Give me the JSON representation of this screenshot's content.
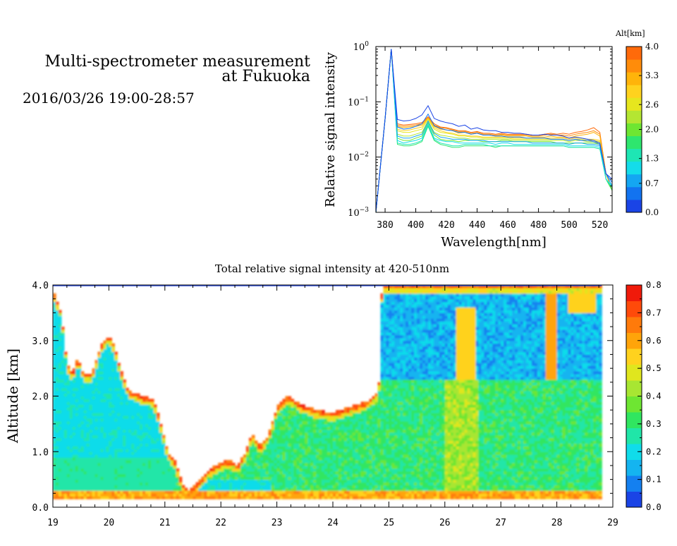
{
  "header": {
    "title_line1": "Multi-spectrometer measurement",
    "title_line2": "at Fukuoka",
    "date_range": "2016/03/26 19:00-28:57"
  },
  "colors": {
    "alt_scale": [
      "#1a44e6",
      "#1273f0",
      "#14a6f2",
      "#14dcea",
      "#1ee6b4",
      "#2ee66e",
      "#6ee632",
      "#b4e632",
      "#e6e61e",
      "#ffd21e",
      "#ffb40a",
      "#ff8c0a",
      "#ff6a0a"
    ],
    "intensity_scale": [
      "#1a44e6",
      "#1480f0",
      "#14b4f0",
      "#10dcea",
      "#20e6a8",
      "#30e660",
      "#6ee632",
      "#a8e632",
      "#e0e61e",
      "#ffd21e",
      "#ffa40a",
      "#ff7a0a",
      "#ff4a0a",
      "#f01a0a"
    ]
  },
  "chart_data": [
    {
      "type": "line",
      "title": "",
      "xlabel": "Wavelength[nm]",
      "ylabel": "Relative signal intensity",
      "xlim": [
        374,
        528
      ],
      "ylim": [
        0.001,
        1
      ],
      "yscale": "log",
      "xticks": [
        "380",
        "400",
        "420",
        "440",
        "460",
        "480",
        "500",
        "520"
      ],
      "yticks": [
        {
          "base": "10",
          "exp": "0"
        },
        {
          "base": "10",
          "exp": "−1"
        },
        {
          "base": "10",
          "exp": "−2"
        },
        {
          "base": "10",
          "exp": "−3"
        }
      ],
      "x": [
        374,
        380,
        384,
        388,
        392,
        396,
        400,
        404,
        408,
        412,
        416,
        420,
        424,
        428,
        432,
        436,
        440,
        444,
        448,
        452,
        456,
        460,
        464,
        468,
        472,
        476,
        480,
        484,
        488,
        492,
        496,
        500,
        504,
        508,
        512,
        516,
        520,
        524,
        528
      ],
      "colorbar": {
        "title": "Alt[km]",
        "ticks": [
          "4.0",
          "3.3",
          "2.6",
          "2.0",
          "1.3",
          "0.7",
          "0.0"
        ],
        "range": [
          0,
          4
        ]
      },
      "series": [
        {
          "alt": 0.0,
          "values": [
            0.001,
            0.05,
            0.9,
            0.048,
            0.045,
            0.046,
            0.05,
            0.058,
            0.085,
            0.05,
            0.045,
            0.042,
            0.04,
            0.036,
            0.038,
            0.032,
            0.034,
            0.031,
            0.03,
            0.03,
            0.028,
            0.028,
            0.027,
            0.027,
            0.026,
            0.025,
            0.025,
            0.026,
            0.025,
            0.025,
            0.024,
            0.022,
            0.023,
            0.022,
            0.021,
            0.02,
            0.018,
            0.005,
            0.004
          ]
        },
        {
          "alt": 0.3,
          "values": [
            0.001,
            0.05,
            0.9,
            0.035,
            0.032,
            0.033,
            0.036,
            0.04,
            0.06,
            0.037,
            0.033,
            0.031,
            0.03,
            0.028,
            0.028,
            0.026,
            0.027,
            0.025,
            0.025,
            0.024,
            0.024,
            0.023,
            0.023,
            0.023,
            0.022,
            0.022,
            0.022,
            0.022,
            0.021,
            0.021,
            0.021,
            0.02,
            0.021,
            0.02,
            0.02,
            0.019,
            0.017,
            0.005,
            0.0035
          ]
        },
        {
          "alt": 0.7,
          "values": [
            0.001,
            0.05,
            0.9,
            0.024,
            0.022,
            0.022,
            0.024,
            0.026,
            0.045,
            0.027,
            0.023,
            0.022,
            0.021,
            0.021,
            0.021,
            0.02,
            0.02,
            0.02,
            0.019,
            0.019,
            0.019,
            0.019,
            0.019,
            0.019,
            0.019,
            0.018,
            0.018,
            0.018,
            0.018,
            0.018,
            0.018,
            0.017,
            0.018,
            0.018,
            0.017,
            0.017,
            0.016,
            0.005,
            0.003
          ]
        },
        {
          "alt": 1.0,
          "values": [
            0.001,
            0.05,
            0.9,
            0.02,
            0.018,
            0.019,
            0.02,
            0.022,
            0.04,
            0.022,
            0.02,
            0.019,
            0.019,
            0.018,
            0.018,
            0.018,
            0.018,
            0.018,
            0.018,
            0.017,
            0.018,
            0.018,
            0.017,
            0.017,
            0.017,
            0.017,
            0.017,
            0.017,
            0.017,
            0.017,
            0.017,
            0.016,
            0.016,
            0.016,
            0.016,
            0.016,
            0.015,
            0.004,
            0.003
          ]
        },
        {
          "alt": 1.3,
          "values": [
            0.001,
            0.05,
            0.9,
            0.018,
            0.017,
            0.017,
            0.018,
            0.02,
            0.038,
            0.021,
            0.018,
            0.017,
            0.016,
            0.016,
            0.017,
            0.017,
            0.017,
            0.017,
            0.016,
            0.016,
            0.016,
            0.016,
            0.016,
            0.016,
            0.016,
            0.016,
            0.016,
            0.016,
            0.016,
            0.016,
            0.016,
            0.015,
            0.015,
            0.015,
            0.015,
            0.015,
            0.014,
            0.004,
            0.0028
          ]
        },
        {
          "alt": 1.6,
          "values": [
            0.001,
            0.05,
            0.9,
            0.017,
            0.016,
            0.016,
            0.017,
            0.019,
            0.036,
            0.02,
            0.017,
            0.016,
            0.015,
            0.015,
            0.016,
            0.016,
            0.016,
            0.016,
            0.016,
            0.015,
            0.016,
            0.016,
            0.016,
            0.016,
            0.016,
            0.016,
            0.016,
            0.016,
            0.016,
            0.016,
            0.016,
            0.015,
            0.015,
            0.015,
            0.015,
            0.015,
            0.014,
            0.004,
            0.0025
          ]
        },
        {
          "alt": 2.0,
          "values": [
            0.001,
            0.05,
            0.9,
            0.022,
            0.02,
            0.02,
            0.022,
            0.024,
            0.042,
            0.025,
            0.021,
            0.02,
            0.02,
            0.019,
            0.02,
            0.02,
            0.02,
            0.019,
            0.019,
            0.019,
            0.02,
            0.02,
            0.019,
            0.019,
            0.019,
            0.019,
            0.019,
            0.019,
            0.019,
            0.018,
            0.018,
            0.018,
            0.018,
            0.018,
            0.018,
            0.018,
            0.017,
            0.004,
            0.0025
          ]
        },
        {
          "alt": 2.3,
          "values": [
            0.001,
            0.05,
            0.9,
            0.026,
            0.024,
            0.024,
            0.026,
            0.028,
            0.045,
            0.028,
            0.025,
            0.024,
            0.023,
            0.022,
            0.022,
            0.021,
            0.021,
            0.021,
            0.021,
            0.021,
            0.021,
            0.021,
            0.02,
            0.02,
            0.02,
            0.02,
            0.02,
            0.02,
            0.02,
            0.02,
            0.02,
            0.019,
            0.02,
            0.02,
            0.019,
            0.019,
            0.018,
            0.004,
            0.0025
          ]
        },
        {
          "alt": 2.6,
          "values": [
            0.001,
            0.05,
            0.9,
            0.03,
            0.028,
            0.028,
            0.03,
            0.032,
            0.048,
            0.032,
            0.028,
            0.027,
            0.026,
            0.024,
            0.024,
            0.023,
            0.023,
            0.022,
            0.022,
            0.022,
            0.022,
            0.022,
            0.021,
            0.021,
            0.021,
            0.021,
            0.021,
            0.021,
            0.021,
            0.021,
            0.021,
            0.02,
            0.021,
            0.021,
            0.02,
            0.02,
            0.019,
            0.004,
            0.0025
          ]
        },
        {
          "alt": 3.0,
          "values": [
            0.001,
            0.05,
            0.9,
            0.032,
            0.03,
            0.031,
            0.033,
            0.035,
            0.05,
            0.034,
            0.03,
            0.028,
            0.027,
            0.025,
            0.025,
            0.024,
            0.024,
            0.023,
            0.023,
            0.023,
            0.023,
            0.023,
            0.022,
            0.022,
            0.022,
            0.022,
            0.022,
            0.022,
            0.022,
            0.022,
            0.022,
            0.021,
            0.022,
            0.022,
            0.021,
            0.021,
            0.02,
            0.004,
            0.0025
          ]
        },
        {
          "alt": 3.3,
          "values": [
            0.001,
            0.05,
            0.9,
            0.036,
            0.034,
            0.035,
            0.036,
            0.038,
            0.05,
            0.036,
            0.032,
            0.031,
            0.03,
            0.027,
            0.028,
            0.026,
            0.027,
            0.025,
            0.025,
            0.024,
            0.025,
            0.024,
            0.024,
            0.024,
            0.024,
            0.023,
            0.023,
            0.023,
            0.024,
            0.023,
            0.023,
            0.022,
            0.024,
            0.025,
            0.026,
            0.028,
            0.024,
            0.005,
            0.0025
          ]
        },
        {
          "alt": 3.6,
          "values": [
            0.001,
            0.05,
            0.9,
            0.038,
            0.036,
            0.037,
            0.038,
            0.04,
            0.052,
            0.038,
            0.034,
            0.033,
            0.031,
            0.029,
            0.029,
            0.027,
            0.028,
            0.026,
            0.026,
            0.025,
            0.026,
            0.025,
            0.025,
            0.025,
            0.025,
            0.024,
            0.024,
            0.025,
            0.026,
            0.025,
            0.025,
            0.024,
            0.026,
            0.027,
            0.028,
            0.03,
            0.026,
            0.005,
            0.0025
          ]
        },
        {
          "alt": 4.0,
          "values": [
            0.001,
            0.05,
            0.9,
            0.04,
            0.038,
            0.039,
            0.04,
            0.042,
            0.054,
            0.04,
            0.035,
            0.034,
            0.032,
            0.03,
            0.03,
            0.028,
            0.029,
            0.027,
            0.027,
            0.026,
            0.027,
            0.026,
            0.026,
            0.026,
            0.026,
            0.025,
            0.025,
            0.026,
            0.027,
            0.026,
            0.027,
            0.026,
            0.028,
            0.029,
            0.031,
            0.034,
            0.028,
            0.005,
            0.0025
          ]
        }
      ]
    },
    {
      "type": "heatmap",
      "title": "Total relative signal intensity at 420-510nm",
      "xlabel": "",
      "ylabel": "Altitude [km]",
      "xlim": [
        19,
        29
      ],
      "ylim": [
        0,
        4
      ],
      "xticks": [
        "19",
        "20",
        "21",
        "22",
        "23",
        "24",
        "25",
        "26",
        "27",
        "28",
        "29"
      ],
      "yticks": [
        "4.0",
        "3.0",
        "2.0",
        "1.0",
        "0.0"
      ],
      "colorbar": {
        "ticks": [
          "0.8",
          "0.7",
          "0.6",
          "0.5",
          "0.4",
          "0.3",
          "0.2",
          "0.1",
          "0.0"
        ],
        "range": [
          0,
          0.8
        ]
      },
      "data_start": 19.0,
      "data_end": 28.8,
      "valid_min_altitude": 0.15,
      "cloud_base": [
        [
          19.0,
          3.9
        ],
        [
          19.15,
          3.5
        ],
        [
          19.25,
          2.6
        ],
        [
          19.35,
          2.4
        ],
        [
          19.45,
          2.7
        ],
        [
          19.55,
          2.4
        ],
        [
          19.7,
          2.4
        ],
        [
          19.85,
          2.9
        ],
        [
          20.0,
          3.1
        ],
        [
          20.1,
          2.9
        ],
        [
          20.2,
          2.5
        ],
        [
          20.35,
          2.1
        ],
        [
          20.6,
          2.0
        ],
        [
          20.8,
          1.95
        ],
        [
          20.9,
          1.6
        ],
        [
          21.05,
          1.0
        ],
        [
          21.2,
          0.8
        ],
        [
          21.3,
          0.45
        ],
        [
          21.45,
          0.3
        ],
        [
          21.6,
          0.45
        ],
        [
          21.8,
          0.7
        ],
        [
          22.0,
          0.8
        ],
        [
          22.15,
          0.85
        ],
        [
          22.3,
          0.75
        ],
        [
          22.45,
          1.0
        ],
        [
          22.55,
          1.35
        ],
        [
          22.7,
          1.1
        ],
        [
          22.85,
          1.3
        ],
        [
          23.0,
          1.8
        ],
        [
          23.2,
          2.0
        ],
        [
          23.45,
          1.85
        ],
        [
          23.7,
          1.75
        ],
        [
          24.0,
          1.7
        ],
        [
          24.3,
          1.8
        ],
        [
          24.6,
          1.9
        ],
        [
          24.82,
          2.1
        ],
        [
          24.88,
          4.0
        ]
      ],
      "intensity_levels": {
        "near_ground": 0.6,
        "lower_layer": 0.3,
        "cloud_edge": 0.7,
        "clear_upper_layer": 0.15
      }
    }
  ]
}
